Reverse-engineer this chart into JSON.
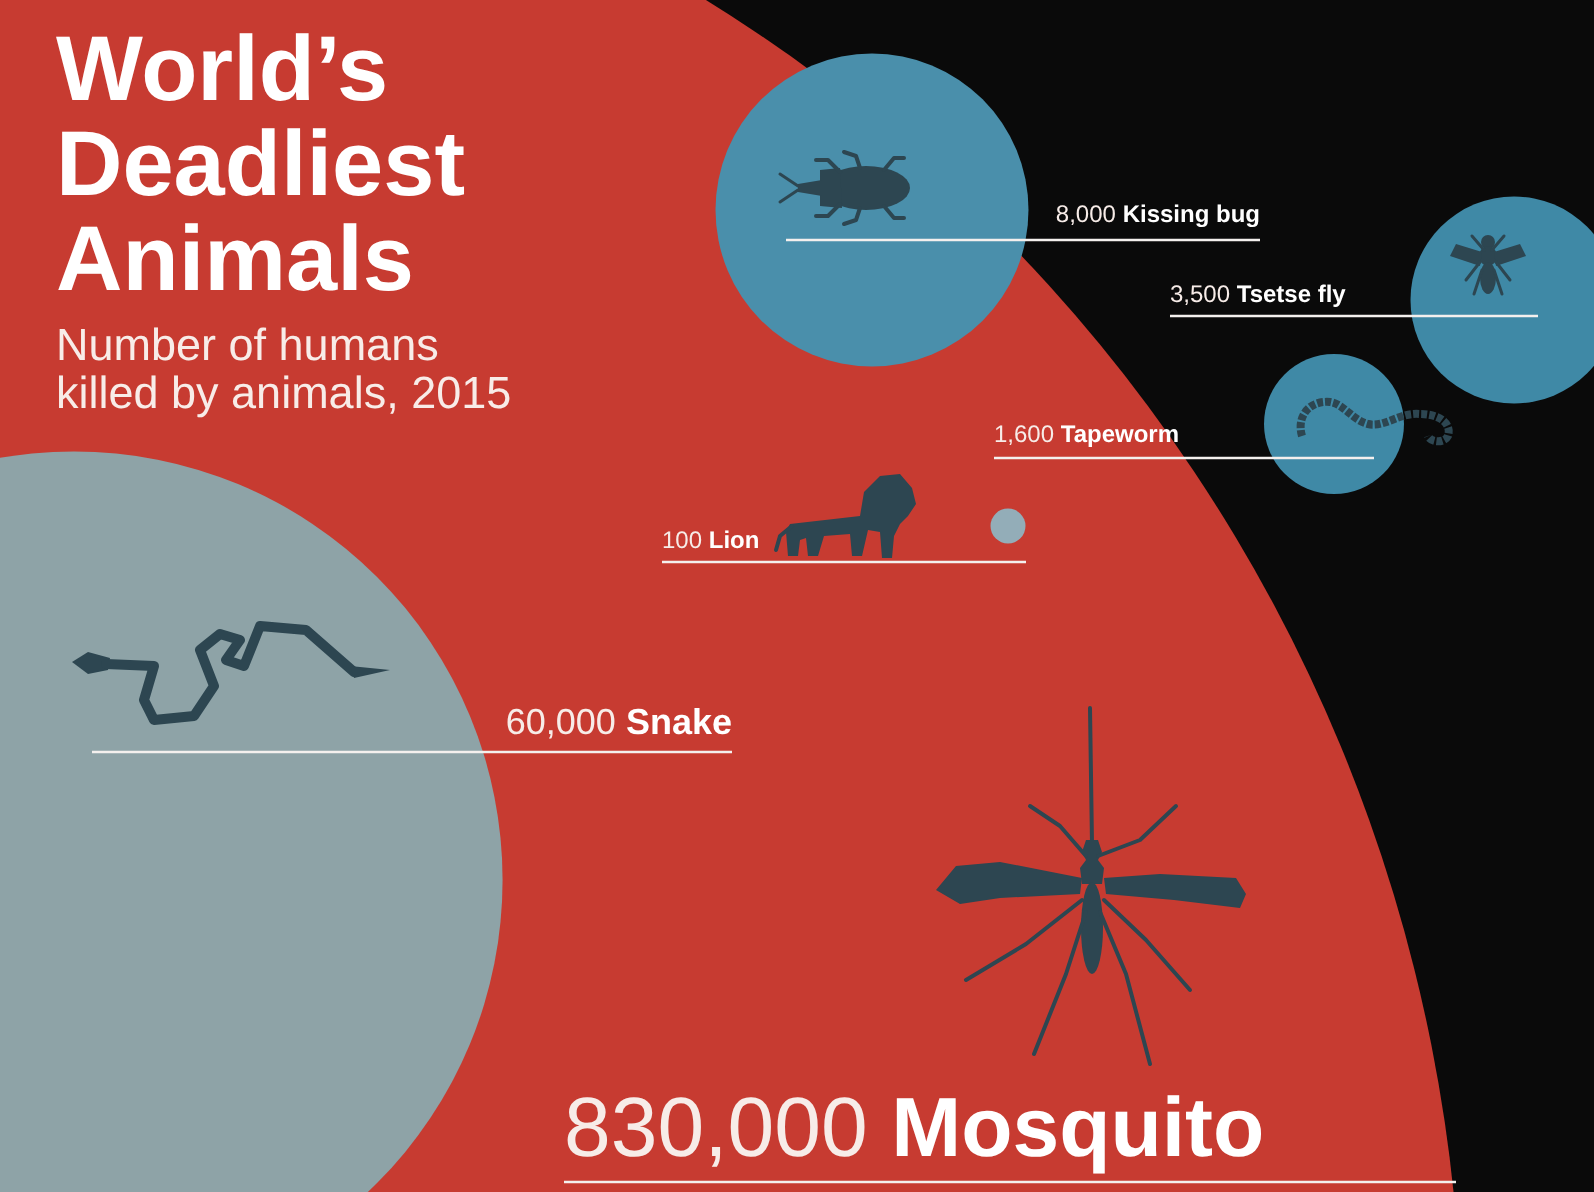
{
  "chart_data": {
    "type": "other",
    "title": "World’s Deadliest Animals",
    "subtitle": "Number of humans killed by animals, 2015",
    "categories": [
      "Mosquito",
      "Snake",
      "Kissing bug",
      "Tsetse fly",
      "Tapeworm",
      "Lion"
    ],
    "values": [
      830000,
      60000,
      8000,
      3500,
      1600,
      100
    ],
    "value_labels": [
      "830,000",
      "60,000",
      "8,000",
      "3,500",
      "1,600",
      "100"
    ],
    "colors": [
      "#c73b31",
      "#8ea3a7",
      "#4a8fab",
      "#3f89a6",
      "#3f89a6",
      "#93adb8"
    ]
  }
}
